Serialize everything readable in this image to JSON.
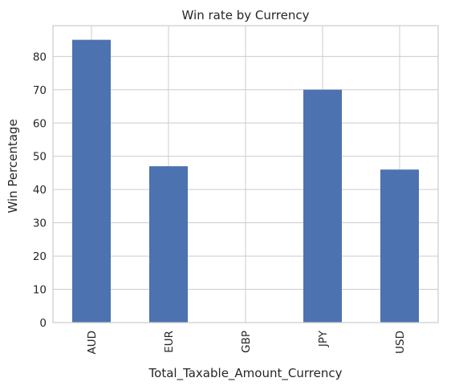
{
  "chart_data": {
    "type": "bar",
    "title": "Win rate by Currency",
    "xlabel": "Total_Taxable_Amount_Currency",
    "ylabel": "Win Percentage",
    "categories": [
      "AUD",
      "EUR",
      "GBP",
      "JPY",
      "USD"
    ],
    "values": [
      85,
      47,
      0,
      70,
      46
    ],
    "ylim": [
      0,
      89.25
    ],
    "yticks": [
      0,
      10,
      20,
      30,
      40,
      50,
      60,
      70,
      80
    ],
    "grid": true,
    "legend": "none",
    "bar_color": "#4c72b0",
    "grid_color": "#cccccc",
    "axis_color": "#cccccc"
  }
}
